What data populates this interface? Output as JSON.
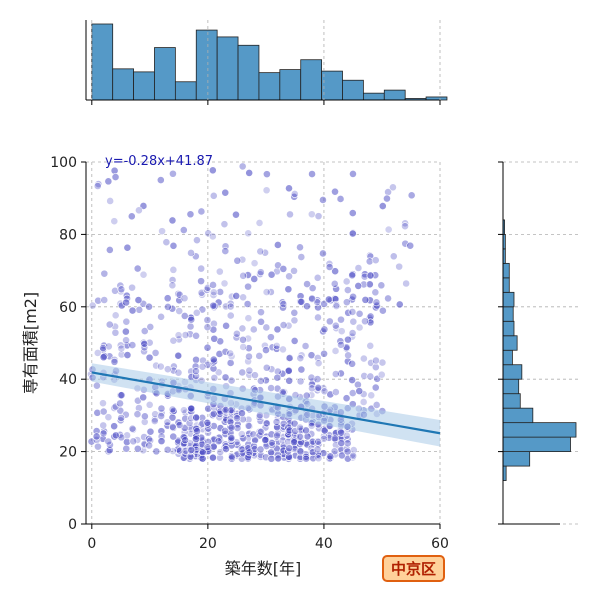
{
  "chart_data": [
    {
      "type": "scatter",
      "title": "",
      "xlabel": "築年数[年]",
      "ylabel": "専有面積[m2]",
      "xlim": [
        -1,
        60
      ],
      "ylim": [
        0,
        100
      ],
      "x_ticks": [
        0,
        20,
        40,
        60
      ],
      "y_ticks": [
        0,
        20,
        40,
        60,
        80,
        100
      ],
      "grid": true,
      "point_color": "#4a4ac4",
      "regression": {
        "label": "y=-0.28x+41.87",
        "slope": -0.28,
        "intercept": 41.87,
        "x_range": [
          0,
          60
        ],
        "color": "#1f77b4",
        "band_color": "#a9cbe8"
      },
      "clusters": [
        {
          "x_range": [
            15,
            45
          ],
          "y_range": [
            18,
            32
          ],
          "count": 380
        },
        {
          "x_range": [
            0,
            20
          ],
          "y_range": [
            20,
            65
          ],
          "count": 220
        },
        {
          "x_range": [
            20,
            50
          ],
          "y_range": [
            30,
            70
          ],
          "count": 260
        },
        {
          "x_range": [
            0,
            55
          ],
          "y_range": [
            60,
            100
          ],
          "count": 130
        }
      ]
    },
    {
      "type": "bar",
      "title": "",
      "orientation": "vertical",
      "description_axis": "築年数[年]",
      "bin_edges": [
        0,
        3.6,
        7.2,
        10.8,
        14.4,
        18,
        21.6,
        25.2,
        28.8,
        32.4,
        36,
        39.6,
        43.2,
        46.8,
        50.4,
        54,
        57.6,
        61.2
      ],
      "values": [
        100,
        41,
        37,
        69,
        24,
        92,
        83,
        72,
        36,
        40,
        53,
        38,
        26,
        9,
        13,
        2,
        4
      ],
      "color": "#5599c7"
    },
    {
      "type": "bar",
      "title": "",
      "orientation": "horizontal",
      "description_axis": "専有面積[m2]",
      "bin_edges": [
        12,
        16,
        20,
        24,
        28,
        32,
        36,
        40,
        44,
        48,
        52,
        56,
        60,
        64,
        68,
        72,
        76,
        80,
        84,
        88,
        92,
        96,
        100
      ],
      "values": [
        4,
        34,
        86,
        93,
        38,
        22,
        20,
        24,
        12,
        18,
        14,
        13,
        14,
        8,
        8,
        3,
        3,
        2,
        0,
        0,
        0,
        0
      ],
      "color": "#5599c7"
    }
  ],
  "badge": {
    "text": "中京区",
    "fill": "#ffd19a",
    "border": "#e06010",
    "text_color": "#b02000"
  }
}
